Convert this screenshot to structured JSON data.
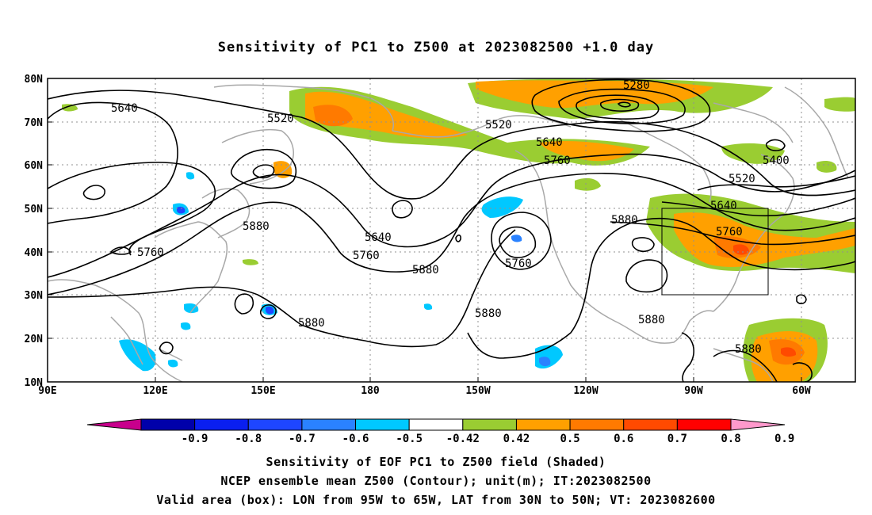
{
  "title": "Sensitivity of PC1 to Z500 at 2023082500 +1.0 day",
  "lat_labels": [
    "80N",
    "70N",
    "60N",
    "50N",
    "40N",
    "30N",
    "20N",
    "10N"
  ],
  "lon_labels": [
    "90E",
    "120E",
    "150E",
    "180",
    "150W",
    "120W",
    "90W",
    "60W"
  ],
  "contour_labels": [
    "5640",
    "5520",
    "5280",
    "5520",
    "5640",
    "5760",
    "5400",
    "5520",
    "5640",
    "5760",
    "5880",
    "5640",
    "5760",
    "5880",
    "5760",
    "5880",
    "5880",
    "5880",
    "5880",
    "5760",
    "5880"
  ],
  "colorbar": {
    "ticks": [
      "-0.9",
      "-0.8",
      "-0.7",
      "-0.6",
      "-0.5",
      "-0.42",
      "0.42",
      "0.5",
      "0.6",
      "0.7",
      "0.8",
      "0.9"
    ],
    "colors": [
      "#c8008c",
      "#0000aa",
      "#0a1ff0",
      "#1e46ff",
      "#2a82ff",
      "#00c8ff",
      "#ffffff",
      "#9acd32",
      "#ffa000",
      "#ff7a00",
      "#ff4a00",
      "#ff0000",
      "#ff99cc"
    ]
  },
  "captions": [
    "Sensitivity of EOF PC1 to Z500 field (Shaded)",
    "NCEP ensemble mean Z500 (Contour); unit(m); IT:2023082500",
    "Valid area (box): LON from 95W to 65W, LAT from 30N to 50N; VT: 2023082600"
  ]
}
